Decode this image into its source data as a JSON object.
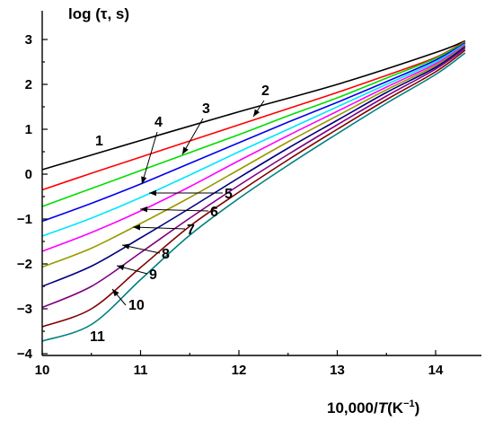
{
  "chart_data": {
    "type": "line",
    "ylabel": "log (τ, s)",
    "xlabel_prefix": "10,000/",
    "xlabel_var": "T",
    "xlabel_unit": "(K",
    "xlabel_sup": "−1",
    "xlabel_close": ")",
    "xlim": [
      10,
      14.3
    ],
    "ylim": [
      -4,
      3.3
    ],
    "x_ticks": [
      10,
      11,
      12,
      13,
      14
    ],
    "x_tick_labels": [
      "10",
      "11",
      "12",
      "13",
      "14"
    ],
    "y_ticks": [
      -4,
      -3,
      -2,
      -1,
      0,
      1,
      2,
      3
    ],
    "y_tick_labels": [
      "−4",
      "−3",
      "−2",
      "−1",
      "0",
      "1",
      "2",
      "3"
    ],
    "grid": false,
    "series": [
      {
        "label": "1",
        "color": "#000000",
        "x": [
          10,
          11,
          12,
          13,
          14,
          14.3
        ],
        "y": [
          0.1,
          0.75,
          1.39,
          2.0,
          2.71,
          2.97
        ]
      },
      {
        "label": "2",
        "color": "#ff0000",
        "x": [
          10,
          10.5,
          11,
          11.5,
          12,
          12.5,
          13,
          13.5,
          14,
          14.3
        ],
        "y": [
          -0.35,
          0.02,
          0.38,
          0.74,
          1.1,
          1.46,
          1.82,
          2.2,
          2.6,
          2.96
        ]
      },
      {
        "label": "3",
        "color": "#00dd00",
        "x": [
          10,
          10.5,
          11,
          11.5,
          12,
          12.5,
          13,
          13.5,
          14,
          14.3
        ],
        "y": [
          -0.72,
          -0.32,
          0.08,
          0.48,
          0.88,
          1.3,
          1.7,
          2.14,
          2.58,
          2.94
        ]
      },
      {
        "label": "4",
        "color": "#0000ee",
        "x": [
          10,
          10.5,
          11,
          11.5,
          12,
          12.5,
          13,
          13.5,
          14,
          14.3
        ],
        "y": [
          -1.05,
          -0.65,
          -0.22,
          0.24,
          0.7,
          1.16,
          1.6,
          2.06,
          2.54,
          2.92
        ]
      },
      {
        "label": "5",
        "color": "#00e5ff",
        "x": [
          10,
          10.5,
          11,
          11.5,
          12,
          12.5,
          13,
          13.5,
          14,
          14.3
        ],
        "y": [
          -1.38,
          -0.98,
          -0.52,
          -0.02,
          0.5,
          1.0,
          1.5,
          2.0,
          2.5,
          2.9
        ]
      },
      {
        "label": "6",
        "color": "#ff00ff",
        "x": [
          10,
          10.5,
          11,
          11.5,
          12,
          12.5,
          13,
          13.5,
          14,
          14.3
        ],
        "y": [
          -1.72,
          -1.3,
          -0.82,
          -0.28,
          0.3,
          0.86,
          1.4,
          1.94,
          2.46,
          2.88
        ]
      },
      {
        "label": "7",
        "color": "#999900",
        "x": [
          10,
          10.5,
          11,
          11.5,
          12,
          12.5,
          13,
          13.5,
          14,
          14.3
        ],
        "y": [
          -2.07,
          -1.65,
          -1.1,
          -0.52,
          0.1,
          0.72,
          1.3,
          1.88,
          2.42,
          2.86
        ]
      },
      {
        "label": "8",
        "color": "#000080",
        "x": [
          10,
          10.5,
          11,
          11.5,
          12,
          12.5,
          13,
          13.5,
          14,
          14.3
        ],
        "y": [
          -2.5,
          -2.05,
          -1.42,
          -0.76,
          -0.08,
          0.58,
          1.2,
          1.82,
          2.38,
          2.84
        ]
      },
      {
        "label": "9",
        "color": "#800080",
        "x": [
          10,
          10.5,
          11,
          11.5,
          12,
          12.5,
          13,
          13.5,
          14,
          14.3
        ],
        "y": [
          -2.97,
          -2.5,
          -1.75,
          -0.98,
          -0.25,
          0.44,
          1.1,
          1.74,
          2.34,
          2.8
        ]
      },
      {
        "label": "10",
        "color": "#800000",
        "x": [
          10,
          10.5,
          11,
          11.5,
          12,
          12.5,
          13,
          13.5,
          14,
          14.3
        ],
        "y": [
          -3.4,
          -3.0,
          -2.08,
          -1.16,
          -0.4,
          0.32,
          1.0,
          1.66,
          2.28,
          2.76
        ]
      },
      {
        "label": "11",
        "color": "#008080",
        "x": [
          10,
          10.5,
          11,
          11.5,
          12,
          12.5,
          13,
          13.5,
          14,
          14.3
        ],
        "y": [
          -3.72,
          -3.35,
          -2.35,
          -1.36,
          -0.54,
          0.2,
          0.9,
          1.58,
          2.22,
          2.7
        ]
      }
    ],
    "annotations": [
      {
        "text": "1"
      },
      {
        "text": "2"
      },
      {
        "text": "3"
      },
      {
        "text": "4"
      },
      {
        "text": "5"
      },
      {
        "text": "6"
      },
      {
        "text": "7"
      },
      {
        "text": "8"
      },
      {
        "text": "9"
      },
      {
        "text": "10"
      },
      {
        "text": "11"
      }
    ]
  }
}
